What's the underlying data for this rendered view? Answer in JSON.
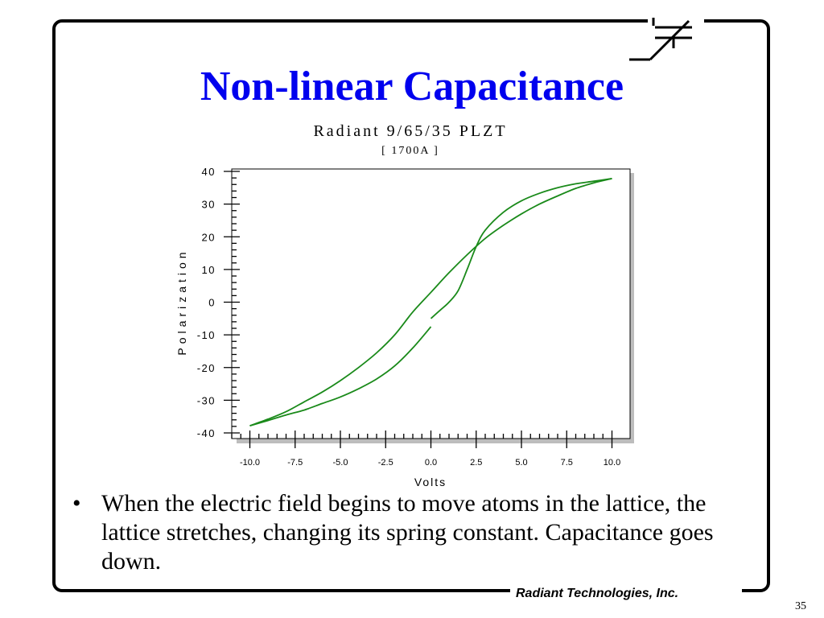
{
  "slide": {
    "title": "Non-linear Capacitance",
    "bullets": [
      "When the electric field begins to move atoms in the lattice, the lattice stretches, changing its spring constant. Capacitance goes down."
    ],
    "footer": "Radiant Technologies, Inc.",
    "page_number": "35",
    "logo_icon": "capacitor-symbol-icon",
    "title_color": "#0000ee"
  },
  "chart_data": {
    "type": "line",
    "title": "Radiant 9/65/35 PLZT",
    "subtitle": "[ 1700A ]",
    "xlabel": "Volts",
    "ylabel": "Polarization",
    "xlim": [
      -11,
      11
    ],
    "ylim": [
      -40,
      40
    ],
    "xticks": [
      "-10.0",
      "-7.5",
      "-5.0",
      "-2.5",
      "0.0",
      "2.5",
      "5.0",
      "7.5",
      "10.0"
    ],
    "yticks": [
      "40",
      "30",
      "20",
      "10",
      "0",
      "-10",
      "-20",
      "-30",
      "-40"
    ],
    "grid": false,
    "line_color": "#1a8a1a",
    "series": [
      {
        "x": [
          0.0,
          0.5,
          1.0,
          1.5,
          2.0,
          2.5,
          3.0,
          4.0,
          5.0,
          6.0,
          7.0,
          8.0,
          9.0,
          10.0
        ],
        "y": [
          -5.0,
          -2.5,
          0.0,
          3.5,
          10.0,
          17.0,
          22.0,
          27.5,
          31.0,
          33.3,
          35.0,
          36.2,
          37.0,
          37.8
        ]
      },
      {
        "x": [
          10.0,
          9.0,
          8.0,
          7.0,
          6.0,
          5.0,
          4.0,
          3.0,
          2.0,
          1.0,
          0.0,
          -1.0,
          -2.0,
          -3.0,
          -4.0,
          -5.0,
          -6.0,
          -7.0,
          -8.0,
          -9.0,
          -10.0
        ],
        "y": [
          37.8,
          36.5,
          34.8,
          32.5,
          30.0,
          27.0,
          23.5,
          19.5,
          14.5,
          9.0,
          3.0,
          -3.0,
          -10.0,
          -15.5,
          -20.0,
          -24.0,
          -27.5,
          -30.5,
          -33.5,
          -35.8,
          -37.8
        ]
      },
      {
        "x": [
          -10.0,
          -9.0,
          -8.0,
          -7.0,
          -6.0,
          -5.0,
          -4.0,
          -3.0,
          -2.0,
          -1.0,
          0.0
        ],
        "y": [
          -37.8,
          -36.2,
          -34.5,
          -33.0,
          -31.0,
          -29.0,
          -26.5,
          -23.5,
          -19.5,
          -14.0,
          -7.5
        ]
      }
    ]
  }
}
